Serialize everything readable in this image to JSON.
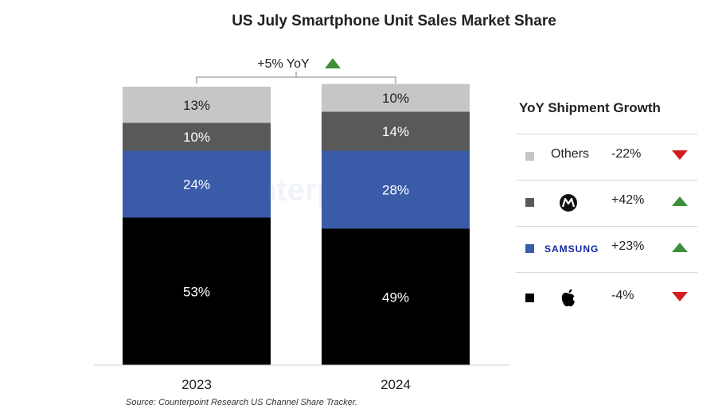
{
  "chart_data": {
    "type": "bar",
    "stacked": true,
    "title": "US July Smartphone Unit Sales Market Share",
    "categories": [
      "2023",
      "2024"
    ],
    "series": [
      {
        "key": "apple",
        "color": "#000000",
        "values": [
          53,
          49
        ]
      },
      {
        "key": "samsung",
        "color": "#3a5ca8",
        "values": [
          24,
          28
        ]
      },
      {
        "key": "motorola",
        "color": "#595959",
        "values": [
          10,
          14
        ]
      },
      {
        "key": "others",
        "color": "#c6c6c6",
        "values": [
          13,
          10
        ]
      }
    ],
    "value_labels": {
      "2023": [
        "53%",
        "24%",
        "10%",
        "13%"
      ],
      "2024": [
        "49%",
        "28%",
        "14%",
        "10%"
      ]
    },
    "yoy_annotation": "+5% YoY",
    "yoy_direction": "up",
    "ylim": [
      0,
      100
    ],
    "xlabel": "",
    "ylabel": ""
  },
  "legend": {
    "title": "YoY Shipment Growth",
    "items": [
      {
        "label": "Others",
        "brand": "others",
        "growth": "-22%",
        "direction": "down",
        "color": "#c6c6c6"
      },
      {
        "label": "",
        "brand": "motorola-logo",
        "growth": "+42%",
        "direction": "up",
        "color": "#595959"
      },
      {
        "label": "SAMSUNG",
        "brand": "samsung-logo",
        "growth": "+23%",
        "direction": "up",
        "color": "#3a5ca8"
      },
      {
        "label": "",
        "brand": "apple-logo",
        "growth": "-4%",
        "direction": "down",
        "color": "#000000"
      }
    ]
  },
  "colors": {
    "up": "#3f8f3a",
    "down": "#d11f1f"
  },
  "watermark": "Counterpoint",
  "source": "Source: Counterpoint Research US Channel Share Tracker."
}
